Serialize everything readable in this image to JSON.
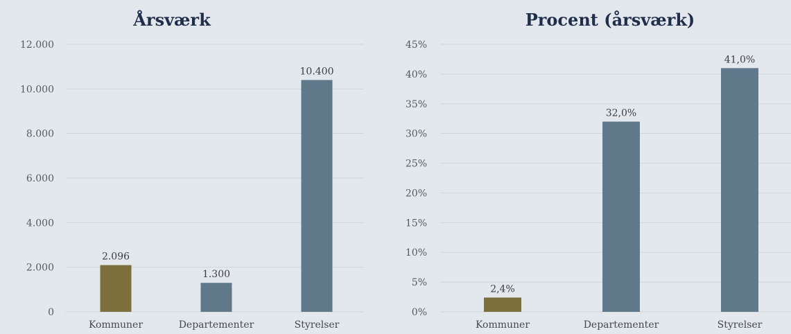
{
  "colors": {
    "highlight": "#7d6f3b",
    "default": "#5f788a",
    "grid": "#cfd5da",
    "title": "#1f2e4d"
  },
  "chart_data": [
    {
      "type": "bar",
      "title": "Årsværk",
      "categories": [
        "Kommuner",
        "Departementer",
        "Styrelser"
      ],
      "values": [
        2096,
        1300,
        10400
      ],
      "data_labels": [
        "2.096",
        "1.300",
        "10.400"
      ],
      "bar_colors": [
        "#7d6f3b",
        "#5f788a",
        "#5f788a"
      ],
      "ylim": [
        0,
        12000
      ],
      "yticks": [
        0,
        2000,
        4000,
        6000,
        8000,
        10000,
        12000
      ],
      "ytick_labels": [
        "0",
        "2.000",
        "4.000",
        "6.000",
        "8.000",
        "10.000",
        "12.000"
      ],
      "grid": true
    },
    {
      "type": "bar",
      "title": "Procent (årsværk)",
      "categories": [
        "Kommuner",
        "Departementer",
        "Styrelser"
      ],
      "values": [
        2.4,
        32.0,
        41.0
      ],
      "data_labels": [
        "2,4%",
        "32,0%",
        "41,0%"
      ],
      "bar_colors": [
        "#7d6f3b",
        "#5f788a",
        "#5f788a"
      ],
      "ylim": [
        0,
        45
      ],
      "yticks": [
        0,
        5,
        10,
        15,
        20,
        25,
        30,
        35,
        40,
        45
      ],
      "ytick_labels": [
        "0%",
        "5%",
        "10%",
        "15%",
        "20%",
        "25%",
        "30%",
        "35%",
        "40%",
        "45%"
      ],
      "grid": true
    }
  ]
}
